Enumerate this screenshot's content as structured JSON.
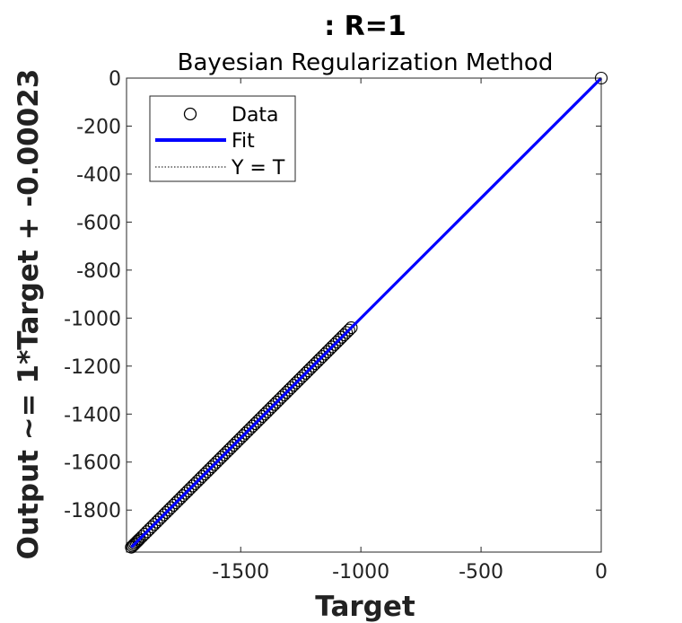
{
  "chart_data": {
    "type": "scatter",
    "title": ": R=1",
    "subtitle": "Bayesian Regularization Method",
    "xlabel": "Target",
    "ylabel": "Output ~= 1*Target + -0.00023",
    "xlim": [
      -1975,
      0
    ],
    "ylim": [
      -1975,
      0
    ],
    "xticks": [
      -1500,
      -1000,
      -500,
      0
    ],
    "yticks": [
      0,
      -200,
      -400,
      -600,
      -800,
      -1000,
      -1200,
      -1400,
      -1600,
      -1800
    ],
    "xtick_labels": [
      "-1500",
      "-1000",
      "-500",
      "0"
    ],
    "ytick_labels": [
      "0",
      "-200",
      "-400",
      "-600",
      "-800",
      "-1000",
      "-1200",
      "-1400",
      "-1600",
      "-1800"
    ],
    "grid": false,
    "legend_position": "top-left",
    "legend": [
      "Data",
      "Fit",
      "Y = T"
    ],
    "series": [
      {
        "name": "Data",
        "marker": "open-circle",
        "color": "#000000",
        "dense_range": [
          -1955,
          -1040
        ],
        "x": [
          -1955,
          -1950,
          -1945,
          -1940,
          -1935,
          -1930,
          -1925,
          -1920,
          -1910,
          -1900,
          -1890,
          -1880,
          -1870,
          -1860,
          -1850,
          -1840,
          -1830,
          -1820,
          -1810,
          -1800,
          -1790,
          -1780,
          -1770,
          -1760,
          -1750,
          -1740,
          -1730,
          -1720,
          -1710,
          -1700,
          -1690,
          -1680,
          -1670,
          -1660,
          -1650,
          -1640,
          -1630,
          -1620,
          -1610,
          -1600,
          -1590,
          -1580,
          -1570,
          -1560,
          -1550,
          -1540,
          -1530,
          -1520,
          -1510,
          -1500,
          -1490,
          -1480,
          -1470,
          -1460,
          -1450,
          -1440,
          -1430,
          -1420,
          -1410,
          -1400,
          -1390,
          -1380,
          -1370,
          -1360,
          -1350,
          -1340,
          -1330,
          -1320,
          -1310,
          -1300,
          -1290,
          -1280,
          -1270,
          -1260,
          -1250,
          -1240,
          -1230,
          -1220,
          -1210,
          -1200,
          -1190,
          -1180,
          -1170,
          -1160,
          -1150,
          -1140,
          -1130,
          -1120,
          -1110,
          -1100,
          -1090,
          -1080,
          -1070,
          -1060,
          -1050,
          -1040,
          0
        ],
        "y": [
          -1955,
          -1950,
          -1945,
          -1940,
          -1935,
          -1930,
          -1925,
          -1920,
          -1910,
          -1900,
          -1890,
          -1880,
          -1870,
          -1860,
          -1850,
          -1840,
          -1830,
          -1820,
          -1810,
          -1800,
          -1790,
          -1780,
          -1770,
          -1760,
          -1750,
          -1740,
          -1730,
          -1720,
          -1710,
          -1700,
          -1690,
          -1680,
          -1670,
          -1660,
          -1650,
          -1640,
          -1630,
          -1620,
          -1610,
          -1600,
          -1590,
          -1580,
          -1570,
          -1560,
          -1550,
          -1540,
          -1530,
          -1520,
          -1510,
          -1500,
          -1490,
          -1480,
          -1470,
          -1460,
          -1450,
          -1440,
          -1430,
          -1420,
          -1410,
          -1400,
          -1390,
          -1380,
          -1370,
          -1360,
          -1350,
          -1340,
          -1330,
          -1320,
          -1310,
          -1300,
          -1290,
          -1280,
          -1270,
          -1260,
          -1250,
          -1240,
          -1230,
          -1220,
          -1210,
          -1200,
          -1190,
          -1180,
          -1170,
          -1160,
          -1150,
          -1140,
          -1130,
          -1120,
          -1110,
          -1100,
          -1090,
          -1080,
          -1070,
          -1060,
          -1050,
          -1040,
          0
        ]
      },
      {
        "name": "Fit",
        "style": "solid",
        "color": "#0000ff",
        "x": [
          -1955,
          0
        ],
        "y": [
          -1955.00023,
          -0.00023
        ]
      },
      {
        "name": "Y = T",
        "style": "dotted",
        "color": "#000000",
        "x": [
          -1955,
          0
        ],
        "y": [
          -1955,
          0
        ]
      }
    ]
  }
}
